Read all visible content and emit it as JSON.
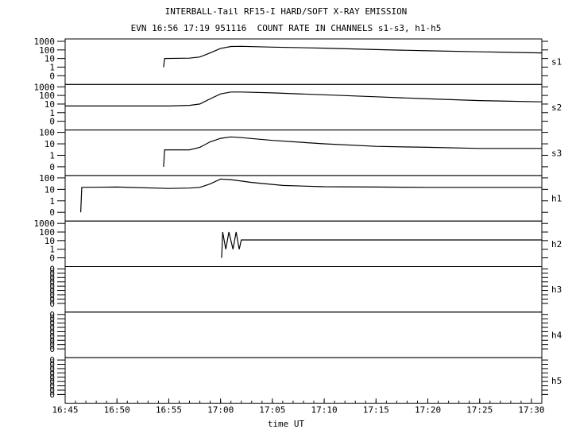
{
  "header": {
    "title_line1": "INTERBALL-Tail RF15-I HARD/SOFT X-RAY EMISSION",
    "title_line2": "EVN 16:56 17:19 951116  COUNT RATE IN CHANNELS s1-s3, h1-h5"
  },
  "chart_data": {
    "type": "line",
    "title": "INTERBALL-Tail RF15-I HARD/SOFT X-RAY EMISSION",
    "subtitle": "EVN 16:56 17:19 951116  COUNT RATE IN CHANNELS s1-s3, h1-h5",
    "xlabel": "time UT",
    "x_tick_labels": [
      "16:45",
      "16:50",
      "16:55",
      "17:00",
      "17:05",
      "17:10",
      "17:15",
      "17:20",
      "17:25",
      "17:30"
    ],
    "x_range": [
      "16:45",
      "17:31"
    ],
    "y_scale": "log",
    "grid": false,
    "panels": [
      {
        "name": "s1",
        "y_tick_labels": [
          "1000",
          "100",
          "10",
          "1",
          "0"
        ],
        "points": [
          [
            "16:54.5",
            1
          ],
          [
            "16:54.6",
            10
          ],
          [
            "16:57",
            11
          ],
          [
            "16:58",
            15
          ],
          [
            "16:59",
            45
          ],
          [
            "17:00",
            150
          ],
          [
            "17:01",
            250
          ],
          [
            "17:02",
            260
          ],
          [
            "17:05",
            210
          ],
          [
            "17:10",
            160
          ],
          [
            "17:15",
            110
          ],
          [
            "17:20",
            80
          ],
          [
            "17:25",
            60
          ],
          [
            "17:31",
            45
          ]
        ]
      },
      {
        "name": "s2",
        "y_tick_labels": [
          "1000",
          "100",
          "10",
          "1",
          "0"
        ],
        "points": [
          [
            "16:45",
            6
          ],
          [
            "16:50",
            6
          ],
          [
            "16:55",
            6
          ],
          [
            "16:57",
            7
          ],
          [
            "16:58",
            10
          ],
          [
            "16:59",
            40
          ],
          [
            "17:00",
            150
          ],
          [
            "17:01",
            250
          ],
          [
            "17:02",
            250
          ],
          [
            "17:05",
            200
          ],
          [
            "17:10",
            120
          ],
          [
            "17:15",
            70
          ],
          [
            "17:20",
            40
          ],
          [
            "17:25",
            25
          ],
          [
            "17:31",
            18
          ]
        ]
      },
      {
        "name": "s3",
        "y_tick_labels": [
          "100",
          "10",
          "1",
          "0"
        ],
        "points": [
          [
            "16:54.5",
            0
          ],
          [
            "16:54.6",
            3
          ],
          [
            "16:57",
            3
          ],
          [
            "16:58",
            5
          ],
          [
            "16:59",
            15
          ],
          [
            "17:00",
            30
          ],
          [
            "17:01",
            40
          ],
          [
            "17:02",
            35
          ],
          [
            "17:05",
            20
          ],
          [
            "17:10",
            10
          ],
          [
            "17:15",
            6
          ],
          [
            "17:20",
            5
          ],
          [
            "17:25",
            4
          ],
          [
            "17:31",
            4
          ]
        ]
      },
      {
        "name": "h1",
        "y_tick_labels": [
          "100",
          "10",
          "1",
          "0"
        ],
        "points": [
          [
            "16:46.5",
            0
          ],
          [
            "16:46.6",
            15
          ],
          [
            "16:50",
            16
          ],
          [
            "16:55",
            12
          ],
          [
            "16:57",
            13
          ],
          [
            "16:58",
            15
          ],
          [
            "16:59",
            30
          ],
          [
            "17:00",
            80
          ],
          [
            "17:01",
            70
          ],
          [
            "17:03",
            40
          ],
          [
            "17:06",
            22
          ],
          [
            "17:10",
            17
          ],
          [
            "17:15",
            16
          ],
          [
            "17:20",
            15
          ],
          [
            "17:25",
            15
          ],
          [
            "17:31",
            15
          ]
        ]
      },
      {
        "name": "h2",
        "y_tick_labels": [
          "1000",
          "100",
          "10",
          "1",
          "0"
        ],
        "points": [
          [
            "17:00.1",
            0
          ],
          [
            "17:00.2",
            100
          ],
          [
            "17:00.5",
            1
          ],
          [
            "17:00.8",
            100
          ],
          [
            "17:01.2",
            1
          ],
          [
            "17:01.5",
            100
          ],
          [
            "17:01.8",
            1
          ],
          [
            "17:02",
            12
          ],
          [
            "17:31",
            12
          ]
        ]
      },
      {
        "name": "h3",
        "y_tick_labels": [
          "0",
          "0",
          "0",
          "0",
          "0",
          "0",
          "0",
          "0",
          "0"
        ],
        "points": []
      },
      {
        "name": "h4",
        "y_tick_labels": [
          "0",
          "0",
          "0",
          "0",
          "0",
          "0",
          "0",
          "0",
          "0"
        ],
        "points": []
      },
      {
        "name": "h5",
        "y_tick_labels": [
          "0",
          "0",
          "0",
          "0",
          "0",
          "0",
          "0",
          "0",
          "0"
        ],
        "points": []
      }
    ]
  }
}
